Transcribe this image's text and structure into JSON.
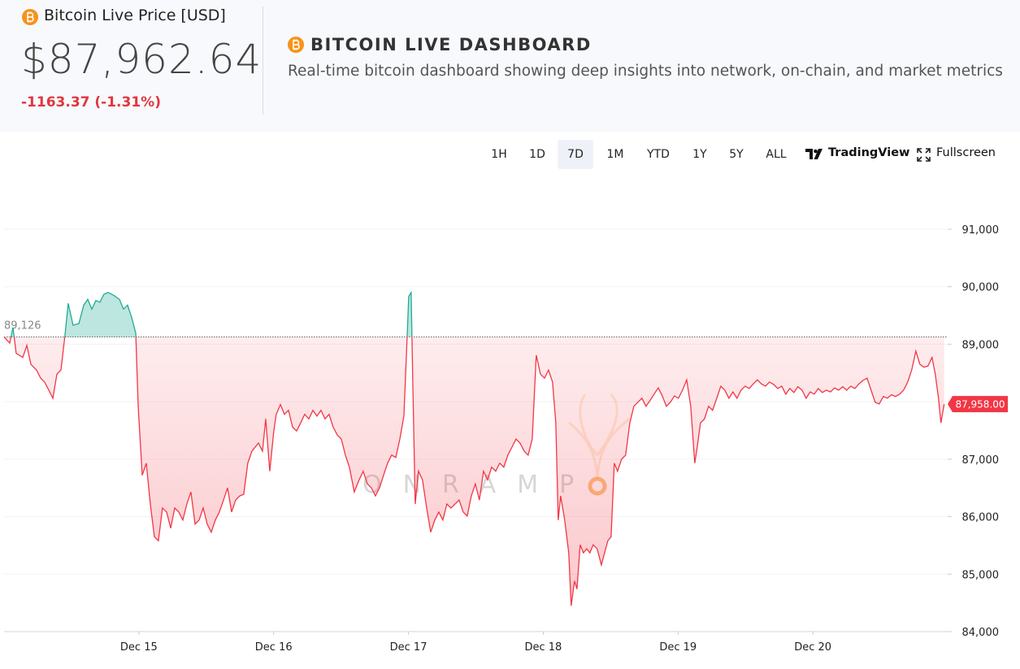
{
  "header": {
    "label": "Bitcoin Live Price [USD]",
    "price": "$87,962.64",
    "change": "-1163.37 (-1.31%)",
    "title": "BITCOIN LIVE DASHBOARD",
    "subtitle": "Real-time bitcoin dashboard showing deep insights into network, on-chain, and market metrics"
  },
  "toolbar": {
    "ranges": [
      "1H",
      "1D",
      "7D",
      "1M",
      "YTD",
      "1Y",
      "5Y",
      "ALL"
    ],
    "active": "7D",
    "tradingview": "TradingView",
    "fullscreen": "Fullscreen"
  },
  "chart_data": {
    "type": "line",
    "watermark": "ONRAMP",
    "x": [
      14.0,
      14.042,
      14.066,
      14.09,
      14.139,
      14.169,
      14.199,
      14.241,
      14.271,
      14.301,
      14.332,
      14.362,
      14.392,
      14.422,
      14.452,
      14.476,
      14.512,
      14.555,
      14.591,
      14.621,
      14.651,
      14.681,
      14.711,
      14.741,
      14.772,
      14.814,
      14.856,
      14.886,
      14.916,
      14.946,
      14.977,
      14.995,
      15.025,
      15.055,
      15.085,
      15.115,
      15.145,
      15.175,
      15.206,
      15.236,
      15.266,
      15.296,
      15.326,
      15.356,
      15.386,
      15.417,
      15.447,
      15.477,
      15.507,
      15.537,
      15.567,
      15.597,
      15.628,
      15.658,
      15.688,
      15.718,
      15.748,
      15.778,
      15.808,
      15.839,
      15.887,
      15.917,
      15.941,
      15.971,
      16.001,
      16.019,
      16.05,
      16.08,
      16.11,
      16.14,
      16.17,
      16.2,
      16.23,
      16.261,
      16.291,
      16.321,
      16.351,
      16.381,
      16.411,
      16.441,
      16.472,
      16.502,
      16.532,
      16.562,
      16.598,
      16.634,
      16.664,
      16.695,
      16.725,
      16.755,
      16.785,
      16.815,
      16.845,
      16.875,
      16.906,
      16.936,
      16.966,
      16.984,
      17.002,
      17.02,
      17.032,
      17.05,
      17.074,
      17.104,
      17.135,
      17.165,
      17.195,
      17.225,
      17.255,
      17.285,
      17.315,
      17.346,
      17.376,
      17.406,
      17.436,
      17.466,
      17.496,
      17.526,
      17.557,
      17.587,
      17.617,
      17.647,
      17.677,
      17.707,
      17.737,
      17.768,
      17.798,
      17.828,
      17.858,
      17.888,
      17.918,
      17.948,
      17.979,
      18.009,
      18.039,
      18.069,
      18.093,
      18.111,
      18.129,
      18.159,
      18.189,
      18.207,
      18.232,
      18.25,
      18.274,
      18.298,
      18.322,
      18.346,
      18.37,
      18.4,
      18.431,
      18.455,
      18.479,
      18.503,
      18.527,
      18.551,
      18.581,
      18.611,
      18.642,
      18.672,
      18.702,
      18.732,
      18.762,
      18.792,
      18.822,
      18.853,
      18.883,
      18.913,
      18.943,
      18.973,
      19.003,
      19.033,
      19.064,
      19.094,
      19.124,
      19.142,
      19.166,
      19.196,
      19.226,
      19.256,
      19.287,
      19.317,
      19.347,
      19.377,
      19.407,
      19.437,
      19.467,
      19.498,
      19.528,
      19.558,
      19.588,
      19.618,
      19.648,
      19.678,
      19.709,
      19.739,
      19.769,
      19.799,
      19.829,
      19.859,
      19.889,
      19.92,
      19.95,
      19.98,
      20.01,
      20.04,
      20.07,
      20.1,
      20.131,
      20.161,
      20.191,
      20.221,
      20.251,
      20.281,
      20.311,
      20.342,
      20.372,
      20.402,
      20.432,
      20.462,
      20.492,
      20.523,
      20.553,
      20.583,
      20.613,
      20.643,
      20.673,
      20.703,
      20.733,
      20.764,
      20.794,
      20.824,
      20.854,
      20.884,
      20.908,
      20.932,
      20.95,
      20.974
    ],
    "values": [
      89126,
      89020,
      89290,
      88840,
      88770,
      88980,
      88650,
      88550,
      88410,
      88340,
      88200,
      88060,
      88480,
      88550,
      89160,
      89710,
      89330,
      89360,
      89680,
      89780,
      89610,
      89760,
      89730,
      89870,
      89900,
      89850,
      89780,
      89610,
      89680,
      89470,
      89190,
      87920,
      86720,
      86930,
      86220,
      85650,
      85580,
      86150,
      86080,
      85800,
      86150,
      86080,
      85940,
      86220,
      86430,
      85870,
      85940,
      86150,
      85870,
      85730,
      85940,
      86080,
      86290,
      86500,
      86080,
      86290,
      86360,
      86390,
      86930,
      87140,
      87280,
      87140,
      87700,
      86790,
      87490,
      87780,
      87950,
      87780,
      87850,
      87560,
      87490,
      87630,
      87780,
      87700,
      87850,
      87750,
      87850,
      87700,
      87780,
      87560,
      87420,
      87350,
      87070,
      86860,
      86430,
      86640,
      86790,
      86570,
      86500,
      86360,
      86500,
      86720,
      86930,
      87070,
      87030,
      87350,
      87750,
      88770,
      89830,
      89900,
      88340,
      86220,
      86790,
      86640,
      86150,
      85730,
      85940,
      86080,
      85940,
      86220,
      86150,
      86220,
      86290,
      86080,
      86010,
      86360,
      86570,
      86290,
      86790,
      86640,
      86860,
      86790,
      86930,
      86860,
      87070,
      87210,
      87350,
      87280,
      87140,
      87070,
      87350,
      88810,
      88480,
      88410,
      88550,
      88340,
      87630,
      85940,
      86360,
      85940,
      85370,
      84450,
      84880,
      84740,
      85510,
      85370,
      85440,
      85370,
      85510,
      85440,
      85160,
      85370,
      85580,
      85650,
      86930,
      86790,
      87000,
      87070,
      87630,
      87920,
      87990,
      88060,
      87920,
      88020,
      88130,
      88240,
      88100,
      87920,
      87990,
      88100,
      88060,
      88200,
      88380,
      87920,
      86930,
      87210,
      87630,
      87700,
      87920,
      87850,
      88060,
      88270,
      88200,
      88060,
      88170,
      88060,
      88200,
      88270,
      88230,
      88310,
      88380,
      88310,
      88270,
      88340,
      88300,
      88230,
      88270,
      88130,
      88230,
      88160,
      88260,
      88200,
      88060,
      88170,
      88130,
      88230,
      88160,
      88200,
      88170,
      88240,
      88200,
      88260,
      88200,
      88270,
      88230,
      88310,
      88370,
      88410,
      88200,
      87990,
      87960,
      88090,
      88060,
      88120,
      88090,
      88130,
      88200,
      88340,
      88550,
      88880,
      88650,
      88600,
      88620,
      88770,
      88480,
      88060,
      87630,
      87958
    ],
    "up_color": "#22ab94",
    "down_color": "#f23645",
    "baseline": {
      "value": 89126,
      "label": "89,126"
    },
    "last_price": {
      "value": 87958,
      "label": "87,958.00"
    },
    "xlim": [
      14,
      21
    ],
    "ylim": [
      84000,
      91000
    ],
    "xticks": [
      {
        "value": 15,
        "label": "Dec 15"
      },
      {
        "value": 16,
        "label": "Dec 16"
      },
      {
        "value": 17,
        "label": "Dec 17"
      },
      {
        "value": 18,
        "label": "Dec 18"
      },
      {
        "value": 19,
        "label": "Dec 19"
      },
      {
        "value": 20,
        "label": "Dec 20"
      }
    ],
    "yticks": [
      {
        "value": 84000,
        "label": "84,000"
      },
      {
        "value": 85000,
        "label": "85,000"
      },
      {
        "value": 86000,
        "label": "86,000"
      },
      {
        "value": 87000,
        "label": "87,000"
      },
      {
        "value": 88000,
        "label": "88,000"
      },
      {
        "value": 89000,
        "label": "89,000"
      },
      {
        "value": 90000,
        "label": "90,000"
      },
      {
        "value": 91000,
        "label": "91,000"
      }
    ],
    "grid": true
  }
}
